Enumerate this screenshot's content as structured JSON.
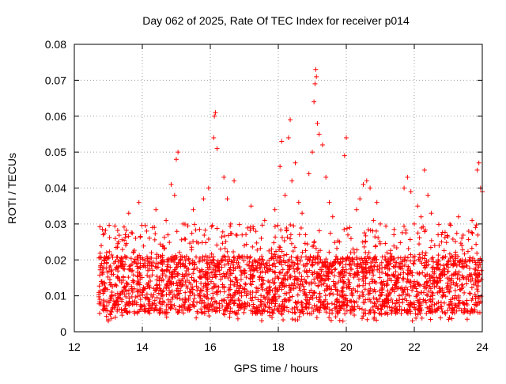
{
  "chart_data": {
    "type": "scatter",
    "title": "Day 062 of 2025, Rate Of TEC Index for receiver p014",
    "xlabel": "GPS time / hours",
    "ylabel": "ROTI / TECUs",
    "xlim": [
      12,
      24
    ],
    "ylim": [
      0,
      0.08
    ],
    "xticks": [
      12,
      14,
      16,
      18,
      20,
      22,
      24
    ],
    "xtick_labels": [
      "12",
      "14",
      "16",
      "18",
      "20",
      "22",
      "24"
    ],
    "yticks": [
      0,
      0.01,
      0.02,
      0.03,
      0.04,
      0.05,
      0.06,
      0.07,
      0.08
    ],
    "ytick_labels": [
      "0",
      "0.01",
      "0.02",
      "0.03",
      "0.04",
      "0.05",
      "0.06",
      "0.07",
      "0.08"
    ],
    "grid": true,
    "marker": "+",
    "color": "#ff0000",
    "series": [
      {
        "name": "ROTI p014",
        "points": [
          [
            12.75,
            0.009
          ],
          [
            12.8,
            0.019
          ],
          [
            12.85,
            0.027
          ],
          [
            12.9,
            0.012
          ],
          [
            12.95,
            0.022
          ],
          [
            13.0,
            0.003
          ],
          [
            13.05,
            0.005
          ],
          [
            13.1,
            0.01
          ],
          [
            13.15,
            0.016
          ],
          [
            13.2,
            0.013
          ],
          [
            13.3,
            0.025
          ],
          [
            13.4,
            0.009
          ],
          [
            13.5,
            0.027
          ],
          [
            13.6,
            0.033
          ],
          [
            13.7,
            0.012
          ],
          [
            13.8,
            0.026
          ],
          [
            13.9,
            0.036
          ],
          [
            14.0,
            0.011
          ],
          [
            14.1,
            0.018
          ],
          [
            14.2,
            0.006
          ],
          [
            14.3,
            0.029
          ],
          [
            14.4,
            0.034
          ],
          [
            14.5,
            0.013
          ],
          [
            14.6,
            0.02
          ],
          [
            14.7,
            0.031
          ],
          [
            14.8,
            0.015
          ],
          [
            14.85,
            0.041
          ],
          [
            14.95,
            0.038
          ],
          [
            15.0,
            0.048
          ],
          [
            15.05,
            0.05
          ],
          [
            15.1,
            0.013
          ],
          [
            15.2,
            0.03
          ],
          [
            15.3,
            0.021
          ],
          [
            15.4,
            0.01
          ],
          [
            15.5,
            0.034
          ],
          [
            15.6,
            0.025
          ],
          [
            15.7,
            0.015
          ],
          [
            15.8,
            0.037
          ],
          [
            15.9,
            0.019
          ],
          [
            15.95,
            0.04
          ],
          [
            16.05,
            0.006
          ],
          [
            16.1,
            0.054
          ],
          [
            16.12,
            0.06
          ],
          [
            16.15,
            0.061
          ],
          [
            16.2,
            0.051
          ],
          [
            16.3,
            0.023
          ],
          [
            16.4,
            0.043
          ],
          [
            16.5,
            0.037
          ],
          [
            16.6,
            0.03
          ],
          [
            16.7,
            0.042
          ],
          [
            16.8,
            0.011
          ],
          [
            16.9,
            0.017
          ],
          [
            17.0,
            0.024
          ],
          [
            17.1,
            0.008
          ],
          [
            17.2,
            0.035
          ],
          [
            17.3,
            0.02
          ],
          [
            17.4,
            0.012
          ],
          [
            17.5,
            0.026
          ],
          [
            17.6,
            0.031
          ],
          [
            17.7,
            0.009
          ],
          [
            17.8,
            0.023
          ],
          [
            17.9,
            0.034
          ],
          [
            18.0,
            0.015
          ],
          [
            18.05,
            0.046
          ],
          [
            18.1,
            0.053
          ],
          [
            18.2,
            0.038
          ],
          [
            18.3,
            0.054
          ],
          [
            18.35,
            0.059
          ],
          [
            18.4,
            0.042
          ],
          [
            18.5,
            0.047
          ],
          [
            18.6,
            0.036
          ],
          [
            18.7,
            0.033
          ],
          [
            18.8,
            0.027
          ],
          [
            18.9,
            0.044
          ],
          [
            19.0,
            0.05
          ],
          [
            19.05,
            0.064
          ],
          [
            19.08,
            0.069
          ],
          [
            19.1,
            0.073
          ],
          [
            19.12,
            0.071
          ],
          [
            19.15,
            0.058
          ],
          [
            19.2,
            0.055
          ],
          [
            19.3,
            0.052
          ],
          [
            19.4,
            0.043
          ],
          [
            19.5,
            0.036
          ],
          [
            19.6,
            0.032
          ],
          [
            19.7,
            0.021
          ],
          [
            19.8,
            0.025
          ],
          [
            19.9,
            0.018
          ],
          [
            19.95,
            0.049
          ],
          [
            20.0,
            0.054
          ],
          [
            20.1,
            0.029
          ],
          [
            20.2,
            0.023
          ],
          [
            20.3,
            0.034
          ],
          [
            20.4,
            0.037
          ],
          [
            20.5,
            0.041
          ],
          [
            20.6,
            0.042
          ],
          [
            20.7,
            0.04
          ],
          [
            20.8,
            0.031
          ],
          [
            20.9,
            0.036
          ],
          [
            21.0,
            0.03
          ],
          [
            21.1,
            0.014
          ],
          [
            21.2,
            0.022
          ],
          [
            21.3,
            0.019
          ],
          [
            21.4,
            0.027
          ],
          [
            21.5,
            0.015
          ],
          [
            21.6,
            0.012
          ],
          [
            21.7,
            0.04
          ],
          [
            21.8,
            0.043
          ],
          [
            21.9,
            0.039
          ],
          [
            22.0,
            0.03
          ],
          [
            22.1,
            0.035
          ],
          [
            22.2,
            0.032
          ],
          [
            22.3,
            0.045
          ],
          [
            22.4,
            0.038
          ],
          [
            22.5,
            0.033
          ],
          [
            22.6,
            0.024
          ],
          [
            22.7,
            0.027
          ],
          [
            22.8,
            0.025
          ],
          [
            22.9,
            0.016
          ],
          [
            23.0,
            0.018
          ],
          [
            23.1,
            0.021
          ],
          [
            23.2,
            0.013
          ],
          [
            23.3,
            0.032
          ],
          [
            23.4,
            0.024
          ],
          [
            23.5,
            0.02
          ],
          [
            23.6,
            0.028
          ],
          [
            23.7,
            0.031
          ],
          [
            23.8,
            0.029
          ],
          [
            23.85,
            0.045
          ],
          [
            23.9,
            0.047
          ],
          [
            23.95,
            0.04
          ],
          [
            24.0,
            0.039
          ]
        ],
        "band_note": "dense cloud of points between 0.005 and 0.02 TECU across 12.7–24 h"
      }
    ]
  }
}
